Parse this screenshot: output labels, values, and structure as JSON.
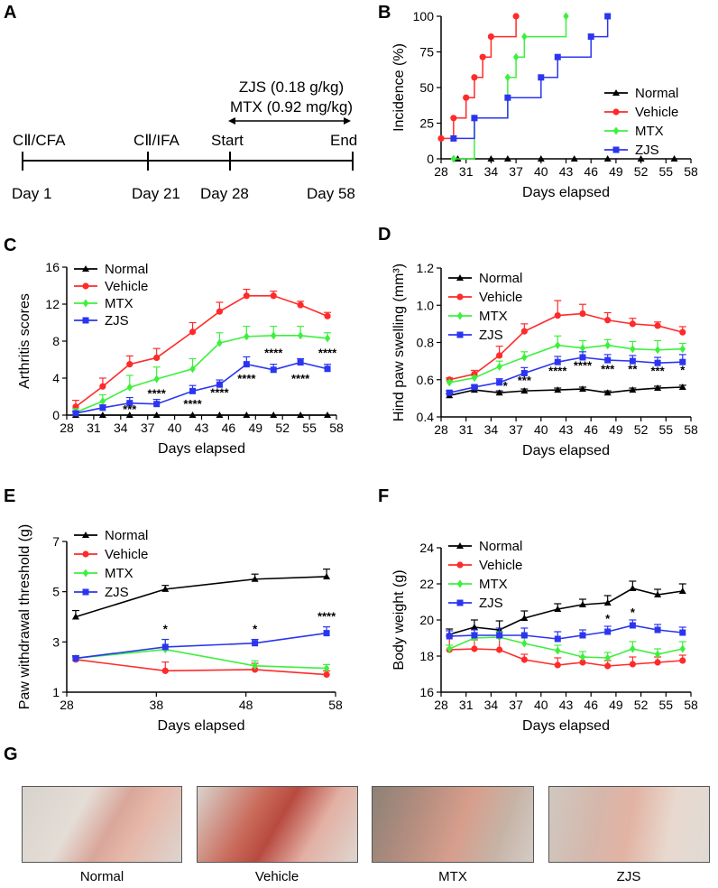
{
  "panel_labels": {
    "a": "A",
    "b": "B",
    "c": "C",
    "d": "D",
    "e": "E",
    "f": "F",
    "g": "G"
  },
  "timeline": {
    "treatment_line1": "ZJS (0.18 g/kg)",
    "treatment_line2": "MTX (0.92 mg/kg)",
    "events": [
      {
        "label": "CⅡ/CFA",
        "day": "Day 1"
      },
      {
        "label": "CⅡ/IFA",
        "day": "Day 21"
      },
      {
        "label": "Start",
        "day": "Day 28"
      },
      {
        "label": "End",
        "day": "Day 58"
      }
    ]
  },
  "legend": [
    "Normal",
    "Vehicle",
    "MTX",
    "ZJS"
  ],
  "colors": {
    "Normal": "#000000",
    "Vehicle": "#ff2a2a",
    "MTX": "#3cf03c",
    "ZJS": "#2b35f0"
  },
  "photos": {
    "captions": [
      "Normal",
      "Vehicle",
      "MTX",
      "ZJS"
    ]
  },
  "chart_data": [
    {
      "id": "B",
      "type": "line",
      "step": true,
      "xlabel": "Days elapsed",
      "ylabel": "Incidence (%)",
      "xlim": [
        28,
        58
      ],
      "xticks": [
        28,
        31,
        34,
        37,
        40,
        43,
        46,
        49,
        52,
        55,
        58
      ],
      "ylim": [
        0,
        100
      ],
      "yticks": [
        0,
        25,
        50,
        75,
        100
      ],
      "series": [
        {
          "name": "Normal",
          "x": [
            30,
            34,
            36,
            40,
            44,
            48,
            52,
            56
          ],
          "y": [
            0,
            0,
            0,
            0,
            0,
            0,
            0,
            0
          ]
        },
        {
          "name": "Vehicle",
          "x": [
            28,
            29.5,
            31,
            32,
            33,
            34,
            37
          ],
          "y": [
            14.3,
            28.6,
            42.9,
            57.1,
            71.4,
            85.7,
            100
          ]
        },
        {
          "name": "MTX",
          "x": [
            29.5,
            32,
            36,
            37,
            38,
            43
          ],
          "y": [
            0,
            28.6,
            57.1,
            71.4,
            85.7,
            100
          ]
        },
        {
          "name": "ZJS",
          "x": [
            29.5,
            32,
            36,
            40,
            42,
            46,
            48
          ],
          "y": [
            14.3,
            28.6,
            42.9,
            57.1,
            71.4,
            85.7,
            100
          ]
        }
      ]
    },
    {
      "id": "C",
      "type": "line",
      "xlabel": "Days elapsed",
      "ylabel": "Arthritis scores",
      "xlim": [
        28,
        58
      ],
      "xticks": [
        28,
        31,
        34,
        37,
        40,
        43,
        46,
        49,
        52,
        55,
        58
      ],
      "ylim": [
        0,
        16
      ],
      "yticks": [
        0,
        4,
        8,
        12,
        16
      ],
      "x": [
        29,
        32,
        35,
        38,
        42,
        45,
        48,
        51,
        54,
        57
      ],
      "series": [
        {
          "name": "Normal",
          "values": [
            0,
            0,
            0,
            0,
            0,
            0,
            0,
            0,
            0,
            0
          ],
          "err": [
            0,
            0,
            0,
            0,
            0,
            0,
            0,
            0,
            0,
            0
          ]
        },
        {
          "name": "Vehicle",
          "values": [
            0.9,
            3.1,
            5.5,
            6.2,
            9.0,
            11.2,
            12.9,
            12.9,
            11.9,
            10.7
          ],
          "err": [
            0.7,
            0.9,
            0.9,
            1.0,
            1.0,
            1.0,
            0.7,
            0.5,
            0.4,
            0.4
          ]
        },
        {
          "name": "MTX",
          "values": [
            0.3,
            1.5,
            3.0,
            3.9,
            5.0,
            7.8,
            8.5,
            8.6,
            8.6,
            8.3
          ],
          "err": [
            0.4,
            0.7,
            1.3,
            1.3,
            1.1,
            1.1,
            1.1,
            1.0,
            1.0,
            0.6
          ]
        },
        {
          "name": "ZJS",
          "values": [
            0.2,
            0.8,
            1.3,
            1.2,
            2.6,
            3.3,
            5.5,
            4.9,
            5.7,
            5.0
          ],
          "err": [
            0.2,
            0.3,
            0.6,
            0.5,
            0.6,
            0.5,
            0.8,
            0.6,
            0.4,
            0.5
          ]
        }
      ],
      "annotations": [
        {
          "x": 35,
          "y": 0.2,
          "text": "***"
        },
        {
          "x": 38,
          "y": 1.9,
          "text": "****"
        },
        {
          "x": 42,
          "y": 0.8,
          "text": "****"
        },
        {
          "x": 45,
          "y": 2.0,
          "text": "****"
        },
        {
          "x": 48,
          "y": 3.5,
          "text": "****"
        },
        {
          "x": 51,
          "y": 6.3,
          "text": "****"
        },
        {
          "x": 54,
          "y": 3.5,
          "text": "****"
        },
        {
          "x": 57,
          "y": 6.3,
          "text": "****"
        }
      ]
    },
    {
      "id": "D",
      "type": "line",
      "xlabel": "Days elapsed",
      "ylabel": "Hind paw swelling (mm³)",
      "xlim": [
        28,
        58
      ],
      "xticks": [
        28,
        31,
        34,
        37,
        40,
        43,
        46,
        49,
        52,
        55,
        58
      ],
      "ylim": [
        0.4,
        1.2
      ],
      "yticks": [
        0.4,
        0.6,
        0.8,
        1.0,
        1.2
      ],
      "ydecimals": 1,
      "x": [
        29,
        32,
        35,
        38,
        42,
        45,
        48,
        51,
        54,
        57
      ],
      "series": [
        {
          "name": "Normal",
          "values": [
            0.515,
            0.545,
            0.53,
            0.54,
            0.545,
            0.55,
            0.53,
            0.545,
            0.555,
            0.56
          ],
          "err": [
            0.01,
            0.01,
            0.01,
            0.01,
            0.01,
            0.01,
            0.01,
            0.01,
            0.01,
            0.01
          ]
        },
        {
          "name": "Vehicle",
          "values": [
            0.6,
            0.63,
            0.73,
            0.86,
            0.945,
            0.955,
            0.92,
            0.9,
            0.89,
            0.855
          ],
          "err": [
            0.01,
            0.02,
            0.05,
            0.04,
            0.08,
            0.05,
            0.04,
            0.03,
            0.02,
            0.03
          ]
        },
        {
          "name": "MTX",
          "values": [
            0.585,
            0.61,
            0.67,
            0.72,
            0.785,
            0.77,
            0.785,
            0.765,
            0.76,
            0.765
          ],
          "err": [
            0.01,
            0.01,
            0.03,
            0.03,
            0.05,
            0.04,
            0.03,
            0.04,
            0.05,
            0.03
          ]
        },
        {
          "name": "ZJS",
          "values": [
            0.53,
            0.56,
            0.585,
            0.635,
            0.695,
            0.72,
            0.705,
            0.7,
            0.69,
            0.695
          ],
          "err": [
            0.01,
            0.01,
            0.02,
            0.03,
            0.03,
            0.03,
            0.03,
            0.03,
            0.03,
            0.04
          ]
        }
      ],
      "annotations": [
        {
          "x": 35.7,
          "y": 0.545,
          "text": "*"
        },
        {
          "x": 38,
          "y": 0.575,
          "text": "***"
        },
        {
          "x": 42,
          "y": 0.625,
          "text": "****"
        },
        {
          "x": 45,
          "y": 0.655,
          "text": "****"
        },
        {
          "x": 48,
          "y": 0.635,
          "text": "***"
        },
        {
          "x": 51,
          "y": 0.635,
          "text": "**"
        },
        {
          "x": 54,
          "y": 0.625,
          "text": "***"
        },
        {
          "x": 57,
          "y": 0.63,
          "text": "*"
        }
      ]
    },
    {
      "id": "E",
      "type": "line",
      "xlabel": "Days elapsed",
      "ylabel": "Paw withdrawal threshold (g)",
      "xlim": [
        28,
        58
      ],
      "xticks": [
        28,
        38,
        48,
        58
      ],
      "ylim": [
        1,
        7
      ],
      "yticks": [
        1,
        3,
        5,
        7
      ],
      "x": [
        29,
        39,
        49,
        57
      ],
      "series": [
        {
          "name": "Normal",
          "values": [
            4.0,
            5.1,
            5.5,
            5.6
          ],
          "err": [
            0.25,
            0.15,
            0.2,
            0.3
          ]
        },
        {
          "name": "Vehicle",
          "values": [
            2.3,
            1.85,
            1.9,
            1.7
          ],
          "err": [
            0.1,
            0.35,
            0.25,
            0.15
          ]
        },
        {
          "name": "MTX",
          "values": [
            2.35,
            2.7,
            2.05,
            1.95
          ],
          "err": [
            0.1,
            0.4,
            0.2,
            0.15
          ]
        },
        {
          "name": "ZJS",
          "values": [
            2.35,
            2.8,
            2.95,
            3.35
          ],
          "err": [
            0.1,
            0.3,
            0.15,
            0.25
          ]
        }
      ],
      "annotations": [
        {
          "x": 39,
          "y": 3.35,
          "text": "*"
        },
        {
          "x": 49,
          "y": 3.35,
          "text": "*"
        },
        {
          "x": 57,
          "y": 3.85,
          "text": "****"
        }
      ]
    },
    {
      "id": "F",
      "type": "line",
      "xlabel": "Days elapsed",
      "ylabel": "Body weight (g)",
      "xlim": [
        28,
        58
      ],
      "xticks": [
        28,
        31,
        34,
        37,
        40,
        43,
        46,
        49,
        52,
        55,
        58
      ],
      "ylim": [
        16,
        24
      ],
      "yticks": [
        16,
        18,
        20,
        22,
        24
      ],
      "x": [
        29,
        32,
        35,
        38,
        42,
        45,
        48,
        51,
        54,
        57
      ],
      "series": [
        {
          "name": "Normal",
          "values": [
            19.2,
            19.6,
            19.45,
            20.1,
            20.6,
            20.85,
            20.95,
            21.75,
            21.4,
            21.6
          ],
          "err": [
            0.3,
            0.4,
            0.5,
            0.4,
            0.3,
            0.3,
            0.4,
            0.4,
            0.3,
            0.4
          ]
        },
        {
          "name": "Vehicle",
          "values": [
            18.35,
            18.4,
            18.35,
            17.8,
            17.5,
            17.65,
            17.45,
            17.55,
            17.65,
            17.75
          ],
          "err": [
            0.8,
            0.5,
            0.7,
            0.3,
            0.4,
            0.3,
            0.3,
            0.4,
            0.3,
            0.3
          ]
        },
        {
          "name": "MTX",
          "values": [
            18.4,
            19.0,
            19.05,
            18.7,
            18.3,
            17.95,
            17.9,
            18.4,
            18.1,
            18.4
          ],
          "err": [
            0.2,
            0.3,
            0.3,
            0.4,
            0.3,
            0.3,
            0.3,
            0.4,
            0.3,
            0.4
          ]
        },
        {
          "name": "ZJS",
          "values": [
            19.1,
            19.15,
            19.15,
            19.15,
            18.95,
            19.15,
            19.35,
            19.7,
            19.45,
            19.3
          ],
          "err": [
            0.3,
            0.3,
            0.4,
            0.4,
            0.4,
            0.3,
            0.3,
            0.3,
            0.3,
            0.3
          ]
        }
      ],
      "annotations": [
        {
          "x": 48,
          "y": 19.85,
          "text": "*"
        },
        {
          "x": 51,
          "y": 20.2,
          "text": "*"
        }
      ]
    }
  ]
}
